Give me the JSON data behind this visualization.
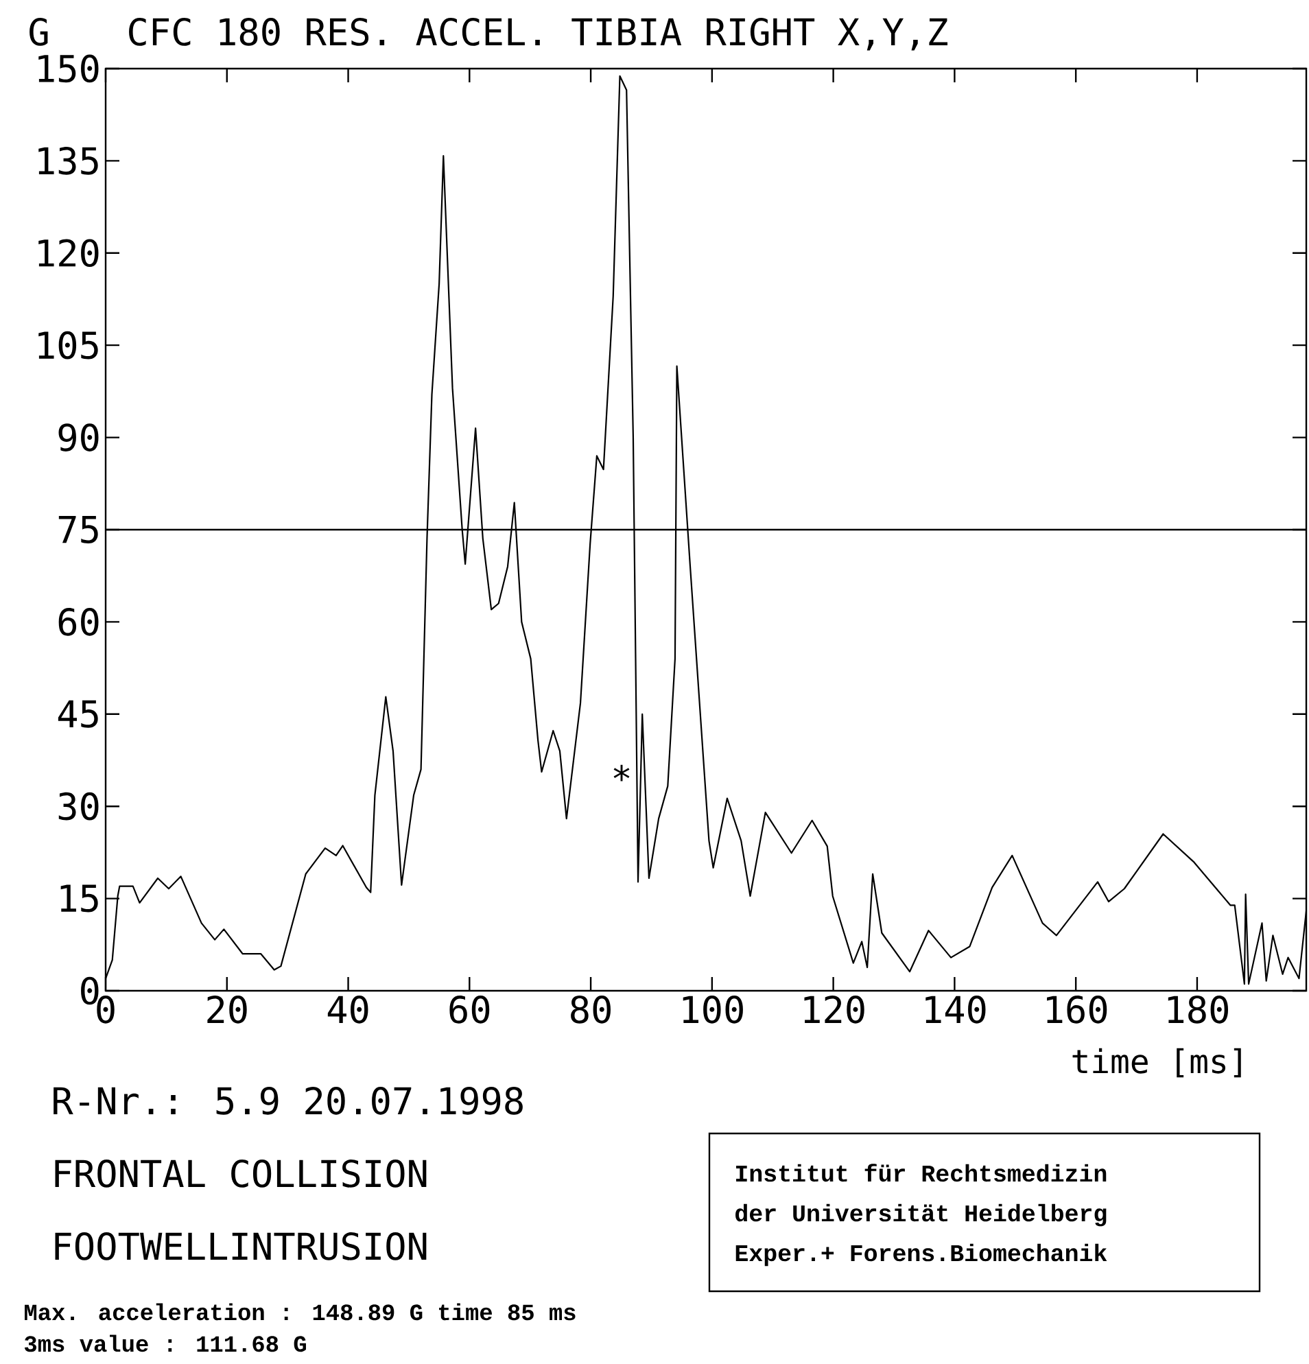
{
  "chart_data": {
    "type": "line",
    "title": "CFC 180   RES. ACCEL. TIBIA RIGHT   X,Y,Z",
    "ylabel": "G",
    "xlabel": "time [ms]",
    "xlim": [
      0,
      198
    ],
    "ylim": [
      0,
      150
    ],
    "xticks": [
      0,
      20,
      40,
      60,
      80,
      100,
      120,
      140,
      160,
      180
    ],
    "yticks": [
      0,
      15,
      30,
      45,
      60,
      75,
      90,
      105,
      120,
      135,
      150
    ],
    "ref_lines": [
      {
        "axis": "y",
        "value": 75
      }
    ],
    "series": [
      {
        "color": "#000000",
        "x": [
          0,
          1.1,
          2,
          2.3,
          4.5,
          5.6,
          8.6,
          10.4,
          12.4,
          15.8,
          18,
          19.5,
          22.6,
          25.6,
          27.8,
          28.9,
          33,
          36.2,
          38,
          39.1,
          43,
          43.7,
          44.4,
          46.2,
          47.4,
          48.8,
          50.8,
          52,
          53,
          53.8,
          55,
          55.7,
          57.2,
          58.8,
          59.3,
          61,
          62.2,
          63.6,
          64.8,
          66.3,
          67.4,
          68.6,
          70.1,
          71.3,
          71.9,
          73.8,
          74.9,
          76,
          78.3,
          79.9,
          81,
          82.1,
          83.7,
          84.8,
          85.9,
          87,
          87.4,
          87.8,
          88.5,
          89.6,
          91.2,
          92.7,
          93.9,
          94.2,
          96.4,
          99.5,
          100.2,
          102.5,
          104.8,
          106.3,
          108.8,
          113.1,
          116.5,
          119,
          119.9,
          123.3,
          124.7,
          125.6,
          126.5,
          128,
          132.6,
          135.7,
          139.4,
          142.5,
          146.2,
          149.5,
          154.5,
          156.8,
          163.6,
          165.4,
          168,
          174.4,
          179.4,
          185.5,
          186.2,
          187.8,
          188,
          188.5,
          190.7,
          191.4,
          192.5,
          194.1,
          195,
          196.8,
          198
        ],
        "values": [
          2,
          5,
          15.4,
          17,
          17,
          14.3,
          18.3,
          16.6,
          18.6,
          11,
          8.3,
          10,
          6,
          6,
          3.4,
          4,
          19,
          23.2,
          22,
          23.6,
          16.8,
          16,
          31.8,
          47.8,
          39,
          17.2,
          31.8,
          36,
          73.6,
          97,
          115,
          135.8,
          98,
          75,
          69.4,
          91.5,
          73.6,
          62,
          63,
          69,
          79.4,
          60,
          54,
          40.7,
          35.6,
          42.3,
          39,
          28,
          46.8,
          72.7,
          87,
          84.8,
          113,
          148.8,
          146.5,
          90,
          54,
          17.7,
          45,
          18.3,
          28,
          33.3,
          54,
          101.6,
          69,
          24.4,
          20,
          31.3,
          24.4,
          15.4,
          29,
          22.4,
          27.7,
          23.5,
          15.4,
          4.5,
          8,
          3.8,
          19,
          9.4,
          3.1,
          9.8,
          5.4,
          7.2,
          16.8,
          22,
          11,
          9,
          17.7,
          14.5,
          16.6,
          25.5,
          21,
          13.9,
          13.9,
          1.1,
          15.7,
          1.1,
          11,
          1.6,
          9,
          2.7,
          5.4,
          2,
          13
        ]
      }
    ],
    "annotations": [
      "*",
      "R-Nr.: 5.9 20.07.1998",
      "FRONTAL COLLISION",
      "FOOTWELLINTRUSION",
      "Institut für Rechtsmedizin",
      "der Universität Heidelberg",
      "Exper.+ Forens.Biomechanik",
      "Max. acceleration : 148.89 G time 85 ms",
      "3ms value : 111.68 G"
    ]
  }
}
